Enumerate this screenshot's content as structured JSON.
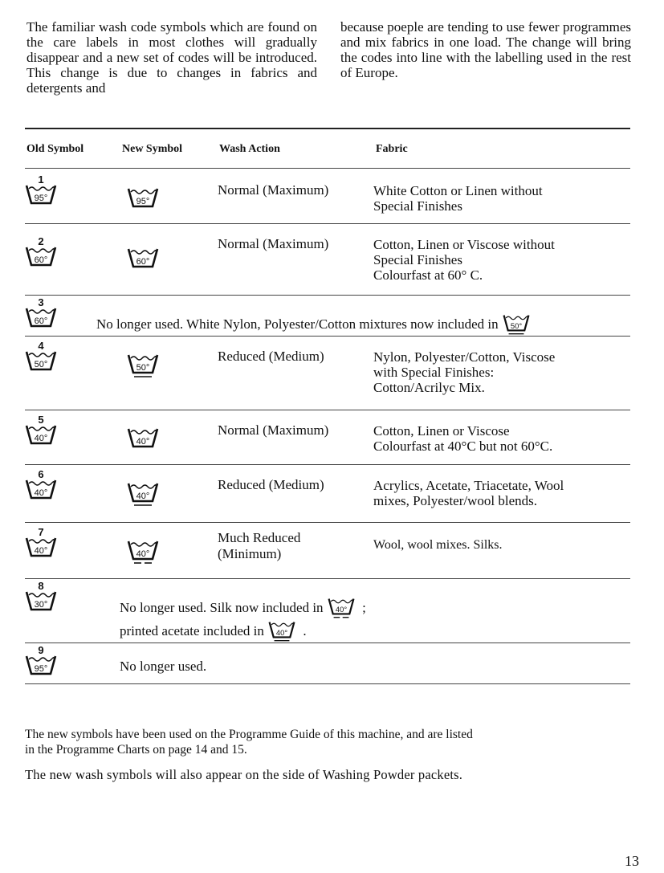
{
  "intro": {
    "left": "The familiar wash code symbols which are found on the care labels in most clothes will gradually disappear and a new set of codes will be introduced. This change is due to changes in fabrics and detergents and",
    "right": "because poeple are tending to use fewer programmes and mix fabrics in one load. The change will bring the codes into line with the labelling used in the rest of Europe."
  },
  "table": {
    "headers": [
      "Old Symbol",
      "New Symbol",
      "Wash Action",
      "Fabric"
    ],
    "rows": [
      {
        "old": {
          "number": "1",
          "temp": "95°"
        },
        "new": {
          "temp": "95°",
          "bar": "none"
        },
        "action": [
          "Normal (Maximum)"
        ],
        "fabric": [
          "White Cotton or Linen without",
          "Special Finishes"
        ]
      },
      {
        "old": {
          "number": "2",
          "temp": "60°"
        },
        "new": {
          "temp": "60°",
          "bar": "none"
        },
        "action": [
          "Normal (Maximum)"
        ],
        "fabric": [
          "Cotton, Linen or Viscose without",
          "Special Finishes",
          "Colourfast at 60° C."
        ]
      },
      {
        "old": {
          "number": "3",
          "temp": "60°"
        },
        "note": "No longer used. White Nylon, Polyester/Cotton mixtures now included in",
        "note_symbol": {
          "temp": "50°",
          "bar": "single"
        }
      },
      {
        "old": {
          "number": "4",
          "temp": "50°"
        },
        "new": {
          "temp": "50°",
          "bar": "single"
        },
        "action": [
          "Reduced (Medium)"
        ],
        "fabric": [
          "Nylon, Polyester/Cotton, Viscose",
          "with Special Finishes:",
          "Cotton/Acrilyc Mix."
        ]
      },
      {
        "old": {
          "number": "5",
          "temp": "40°"
        },
        "new": {
          "temp": "40°",
          "bar": "none"
        },
        "action": [
          "Normal (Maximum)"
        ],
        "fabric": [
          "Cotton, Linen or Viscose",
          "Colourfast at 40°C but not 60°C."
        ]
      },
      {
        "old": {
          "number": "6",
          "temp": "40°"
        },
        "new": {
          "temp": "40°",
          "bar": "single"
        },
        "action": [
          "Reduced (Medium)"
        ],
        "fabric": [
          "Acrylics, Acetate, Triacetate, Wool",
          "mixes, Polyester/wool blends."
        ]
      },
      {
        "old": {
          "number": "7",
          "temp": "40°"
        },
        "new": {
          "temp": "40°",
          "bar": "dashed"
        },
        "action": [
          "Much Reduced",
          "(Minimum)"
        ],
        "fabric": [
          "Wool, wool mixes. Silks."
        ]
      },
      {
        "old": {
          "number": "8",
          "temp": "30°"
        },
        "note_lines": [
          {
            "text": "No longer used. Silk now included in",
            "symbol": {
              "temp": "40°",
              "bar": "dashed"
            },
            "after": ";"
          },
          {
            "text": "printed acetate included in",
            "symbol": {
              "temp": "40°",
              "bar": "single"
            },
            "after": "."
          }
        ]
      },
      {
        "old": {
          "number": "9",
          "temp": "95°"
        },
        "note": "No longer used."
      }
    ]
  },
  "footer": {
    "line1": "The new symbols have been used on the Programme Guide of this machine, and are listed",
    "line2": "in the Programme Charts on page 14 and 15.",
    "line3": "The new wash symbols will also appear on the side of Washing Powder packets."
  },
  "page_number": "13"
}
